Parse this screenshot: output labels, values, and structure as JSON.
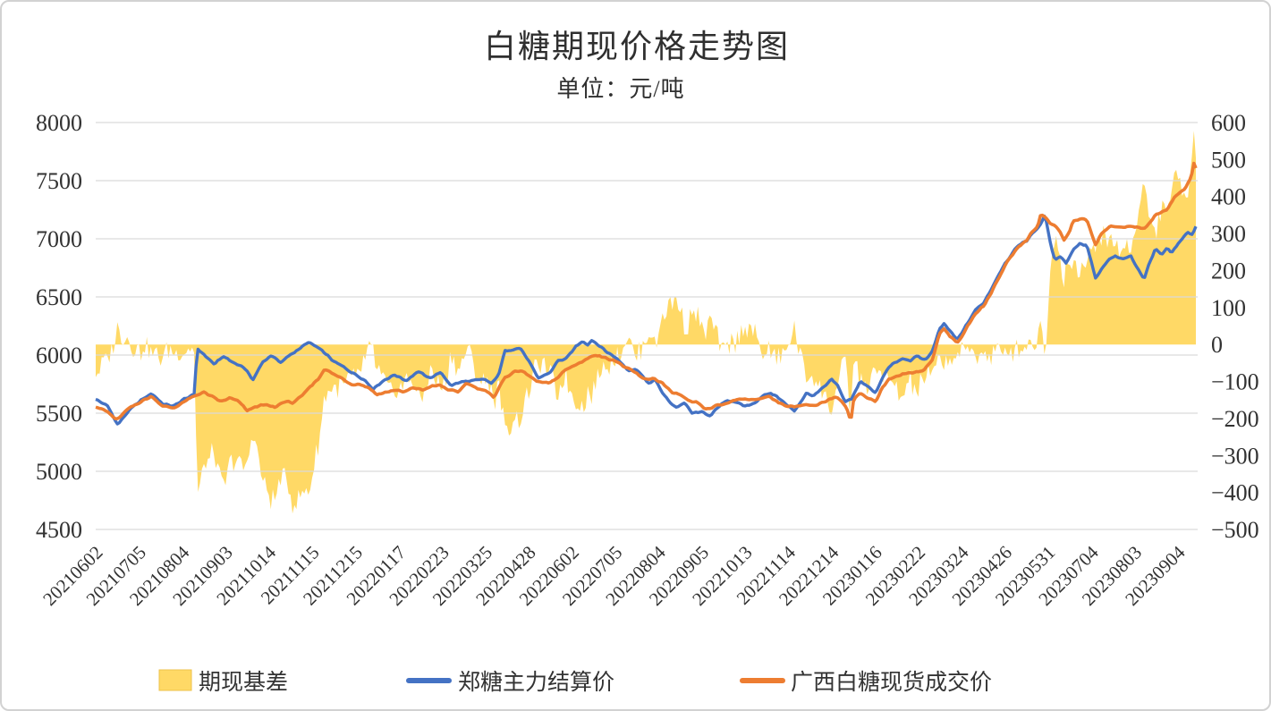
{
  "chart_data": {
    "type": "combo-area-line",
    "title": "白糖期现价格走势图",
    "subtitle": "单位：元/吨",
    "palette": {
      "basis_area": "#FFD966",
      "basis_edge": "#EDC24C",
      "futures_line": "#4472C4",
      "spot_line": "#ED7D31",
      "gridline": "#D9D9D9",
      "text": "#3d3d3d",
      "frame_border": "#d2d2d2"
    },
    "x_axis": {
      "label_rotation_deg": -45,
      "labels": [
        "20210602",
        "20210705",
        "20210804",
        "20210903",
        "20211014",
        "20211115",
        "20211215",
        "20220117",
        "20220223",
        "20220325",
        "20220428",
        "20220602",
        "20220705",
        "20220804",
        "20220905",
        "20221013",
        "20221114",
        "20221214",
        "20230116",
        "20230222",
        "20230324",
        "20230426",
        "20230531",
        "20230704",
        "20230803",
        "20230904"
      ]
    },
    "y_axis_left": {
      "min": 4500,
      "max": 8000,
      "step": 500,
      "ticks": [
        8000,
        7500,
        7000,
        6500,
        6000,
        5500,
        5000,
        4500
      ]
    },
    "y_axis_right": {
      "min": -500,
      "max": 600,
      "step": 100,
      "ticks": [
        600,
        500,
        400,
        300,
        200,
        100,
        0,
        -100,
        -200,
        -300,
        -400,
        -500
      ]
    },
    "legend": [
      {
        "label": "期现基差",
        "type": "area",
        "color": "#FFD966"
      },
      {
        "label": "郑糖主力结算价",
        "type": "line",
        "color": "#4472C4"
      },
      {
        "label": "广西白糖现货成交价",
        "type": "line",
        "color": "#ED7D31"
      }
    ],
    "keypoint_format": "[x_fraction_along_axis, price_yuan_per_ton]",
    "series": {
      "basis": {
        "name": "期现基差",
        "axis": "right",
        "color": "#FFD966",
        "derivation": "spot_minus_futures",
        "approx_range": [
          -390,
          520
        ]
      },
      "futures": {
        "name": "郑糖主力结算价",
        "axis": "left",
        "color": "#4472C4",
        "keypoints": [
          [
            0,
            5620
          ],
          [
            0.011,
            5560
          ],
          [
            0.02,
            5400
          ],
          [
            0.03,
            5520
          ],
          [
            0.041,
            5610
          ],
          [
            0.051,
            5670
          ],
          [
            0.061,
            5580
          ],
          [
            0.071,
            5560
          ],
          [
            0.08,
            5620
          ],
          [
            0.09,
            5660
          ],
          [
            0.092,
            6060
          ],
          [
            0.1,
            5990
          ],
          [
            0.108,
            5920
          ],
          [
            0.116,
            5990
          ],
          [
            0.124,
            5940
          ],
          [
            0.134,
            5900
          ],
          [
            0.143,
            5790
          ],
          [
            0.152,
            5940
          ],
          [
            0.16,
            6000
          ],
          [
            0.168,
            5930
          ],
          [
            0.176,
            6000
          ],
          [
            0.185,
            6050
          ],
          [
            0.193,
            6110
          ],
          [
            0.201,
            6070
          ],
          [
            0.209,
            6010
          ],
          [
            0.217,
            5940
          ],
          [
            0.225,
            5900
          ],
          [
            0.233,
            5850
          ],
          [
            0.244,
            5790
          ],
          [
            0.252,
            5710
          ],
          [
            0.263,
            5790
          ],
          [
            0.272,
            5830
          ],
          [
            0.282,
            5780
          ],
          [
            0.293,
            5860
          ],
          [
            0.303,
            5800
          ],
          [
            0.313,
            5850
          ],
          [
            0.323,
            5740
          ],
          [
            0.333,
            5770
          ],
          [
            0.344,
            5780
          ],
          [
            0.354,
            5790
          ],
          [
            0.36,
            5750
          ],
          [
            0.367,
            5850
          ],
          [
            0.372,
            6040
          ],
          [
            0.38,
            6050
          ],
          [
            0.386,
            6060
          ],
          [
            0.394,
            5940
          ],
          [
            0.402,
            5800
          ],
          [
            0.413,
            5850
          ],
          [
            0.42,
            5950
          ],
          [
            0.428,
            5970
          ],
          [
            0.437,
            6080
          ],
          [
            0.443,
            6120
          ],
          [
            0.447,
            6090
          ],
          [
            0.451,
            6130
          ],
          [
            0.458,
            6080
          ],
          [
            0.464,
            6030
          ],
          [
            0.471,
            5990
          ],
          [
            0.477,
            5940
          ],
          [
            0.484,
            5870
          ],
          [
            0.49,
            5880
          ],
          [
            0.496,
            5840
          ],
          [
            0.502,
            5750
          ],
          [
            0.508,
            5790
          ],
          [
            0.515,
            5680
          ],
          [
            0.521,
            5600
          ],
          [
            0.528,
            5550
          ],
          [
            0.535,
            5590
          ],
          [
            0.542,
            5500
          ],
          [
            0.55,
            5510
          ],
          [
            0.559,
            5480
          ],
          [
            0.565,
            5540
          ],
          [
            0.573,
            5610
          ],
          [
            0.581,
            5600
          ],
          [
            0.589,
            5560
          ],
          [
            0.598,
            5580
          ],
          [
            0.606,
            5650
          ],
          [
            0.614,
            5670
          ],
          [
            0.62,
            5640
          ],
          [
            0.628,
            5570
          ],
          [
            0.635,
            5520
          ],
          [
            0.641,
            5600
          ],
          [
            0.646,
            5670
          ],
          [
            0.653,
            5650
          ],
          [
            0.659,
            5700
          ],
          [
            0.664,
            5740
          ],
          [
            0.669,
            5790
          ],
          [
            0.675,
            5730
          ],
          [
            0.681,
            5600
          ],
          [
            0.687,
            5620
          ],
          [
            0.695,
            5780
          ],
          [
            0.703,
            5720
          ],
          [
            0.709,
            5670
          ],
          [
            0.715,
            5800
          ],
          [
            0.721,
            5900
          ],
          [
            0.728,
            5940
          ],
          [
            0.734,
            5970
          ],
          [
            0.74,
            5950
          ],
          [
            0.747,
            5990
          ],
          [
            0.754,
            5960
          ],
          [
            0.76,
            6020
          ],
          [
            0.767,
            6220
          ],
          [
            0.771,
            6270
          ],
          [
            0.777,
            6200
          ],
          [
            0.783,
            6130
          ],
          [
            0.791,
            6250
          ],
          [
            0.799,
            6380
          ],
          [
            0.807,
            6450
          ],
          [
            0.813,
            6550
          ],
          [
            0.82,
            6680
          ],
          [
            0.827,
            6800
          ],
          [
            0.833,
            6870
          ],
          [
            0.839,
            6950
          ],
          [
            0.846,
            6980
          ],
          [
            0.851,
            7050
          ],
          [
            0.856,
            7080
          ],
          [
            0.863,
            7200
          ],
          [
            0.868,
            6950
          ],
          [
            0.872,
            6820
          ],
          [
            0.877,
            6850
          ],
          [
            0.882,
            6790
          ],
          [
            0.888,
            6900
          ],
          [
            0.894,
            6960
          ],
          [
            0.901,
            6940
          ],
          [
            0.905,
            6800
          ],
          [
            0.909,
            6650
          ],
          [
            0.915,
            6750
          ],
          [
            0.921,
            6820
          ],
          [
            0.927,
            6850
          ],
          [
            0.933,
            6820
          ],
          [
            0.937,
            6840
          ],
          [
            0.941,
            6850
          ],
          [
            0.947,
            6750
          ],
          [
            0.953,
            6650
          ],
          [
            0.958,
            6800
          ],
          [
            0.963,
            6910
          ],
          [
            0.969,
            6870
          ],
          [
            0.974,
            6920
          ],
          [
            0.978,
            6880
          ],
          [
            0.982,
            6930
          ],
          [
            0.988,
            7010
          ],
          [
            0.993,
            7060
          ],
          [
            0.997,
            7030
          ],
          [
            1,
            7100
          ]
        ]
      },
      "spot": {
        "name": "广西白糖现货成交价",
        "axis": "left",
        "color": "#ED7D31",
        "keypoints": [
          [
            0,
            5560
          ],
          [
            0.011,
            5510
          ],
          [
            0.019,
            5440
          ],
          [
            0.03,
            5540
          ],
          [
            0.041,
            5600
          ],
          [
            0.051,
            5645
          ],
          [
            0.061,
            5560
          ],
          [
            0.071,
            5545
          ],
          [
            0.081,
            5600
          ],
          [
            0.09,
            5650
          ],
          [
            0.098,
            5680
          ],
          [
            0.106,
            5640
          ],
          [
            0.114,
            5600
          ],
          [
            0.122,
            5630
          ],
          [
            0.13,
            5600
          ],
          [
            0.138,
            5520
          ],
          [
            0.146,
            5560
          ],
          [
            0.154,
            5570
          ],
          [
            0.163,
            5550
          ],
          [
            0.171,
            5600
          ],
          [
            0.179,
            5590
          ],
          [
            0.187,
            5640
          ],
          [
            0.195,
            5730
          ],
          [
            0.203,
            5800
          ],
          [
            0.208,
            5885
          ],
          [
            0.215,
            5840
          ],
          [
            0.224,
            5800
          ],
          [
            0.232,
            5750
          ],
          [
            0.24,
            5750
          ],
          [
            0.248,
            5720
          ],
          [
            0.256,
            5660
          ],
          [
            0.264,
            5680
          ],
          [
            0.272,
            5700
          ],
          [
            0.28,
            5680
          ],
          [
            0.289,
            5720
          ],
          [
            0.297,
            5700
          ],
          [
            0.305,
            5730
          ],
          [
            0.313,
            5740
          ],
          [
            0.321,
            5700
          ],
          [
            0.329,
            5680
          ],
          [
            0.337,
            5760
          ],
          [
            0.346,
            5720
          ],
          [
            0.354,
            5690
          ],
          [
            0.362,
            5640
          ],
          [
            0.372,
            5810
          ],
          [
            0.38,
            5850
          ],
          [
            0.386,
            5870
          ],
          [
            0.394,
            5820
          ],
          [
            0.402,
            5770
          ],
          [
            0.411,
            5756
          ],
          [
            0.417,
            5780
          ],
          [
            0.425,
            5860
          ],
          [
            0.435,
            5910
          ],
          [
            0.443,
            5950
          ],
          [
            0.451,
            5990
          ],
          [
            0.458,
            6000
          ],
          [
            0.464,
            5970
          ],
          [
            0.471,
            5960
          ],
          [
            0.477,
            5920
          ],
          [
            0.484,
            5880
          ],
          [
            0.492,
            5840
          ],
          [
            0.498,
            5790
          ],
          [
            0.507,
            5800
          ],
          [
            0.515,
            5760
          ],
          [
            0.523,
            5680
          ],
          [
            0.531,
            5660
          ],
          [
            0.539,
            5600
          ],
          [
            0.547,
            5590
          ],
          [
            0.555,
            5530
          ],
          [
            0.563,
            5560
          ],
          [
            0.572,
            5580
          ],
          [
            0.58,
            5610
          ],
          [
            0.588,
            5630
          ],
          [
            0.596,
            5610
          ],
          [
            0.604,
            5630
          ],
          [
            0.612,
            5640
          ],
          [
            0.62,
            5600
          ],
          [
            0.628,
            5560
          ],
          [
            0.637,
            5560
          ],
          [
            0.645,
            5570
          ],
          [
            0.654,
            5560
          ],
          [
            0.663,
            5600
          ],
          [
            0.671,
            5640
          ],
          [
            0.677,
            5620
          ],
          [
            0.682,
            5560
          ],
          [
            0.685,
            5480
          ],
          [
            0.686,
            5400
          ],
          [
            0.689,
            5620
          ],
          [
            0.695,
            5670
          ],
          [
            0.703,
            5630
          ],
          [
            0.709,
            5600
          ],
          [
            0.715,
            5720
          ],
          [
            0.721,
            5790
          ],
          [
            0.728,
            5815
          ],
          [
            0.736,
            5840
          ],
          [
            0.744,
            5855
          ],
          [
            0.752,
            5865
          ],
          [
            0.76,
            5950
          ],
          [
            0.767,
            6180
          ],
          [
            0.771,
            6230
          ],
          [
            0.777,
            6160
          ],
          [
            0.783,
            6100
          ],
          [
            0.791,
            6220
          ],
          [
            0.799,
            6350
          ],
          [
            0.807,
            6420
          ],
          [
            0.813,
            6520
          ],
          [
            0.82,
            6650
          ],
          [
            0.827,
            6780
          ],
          [
            0.833,
            6860
          ],
          [
            0.839,
            6940
          ],
          [
            0.846,
            6980
          ],
          [
            0.851,
            7060
          ],
          [
            0.856,
            7100
          ],
          [
            0.859,
            7210
          ],
          [
            0.863,
            7190
          ],
          [
            0.868,
            7120
          ],
          [
            0.872,
            7115
          ],
          [
            0.877,
            7060
          ],
          [
            0.88,
            6980
          ],
          [
            0.885,
            7060
          ],
          [
            0.888,
            7150
          ],
          [
            0.894,
            7170
          ],
          [
            0.901,
            7160
          ],
          [
            0.905,
            7050
          ],
          [
            0.909,
            6940
          ],
          [
            0.915,
            7060
          ],
          [
            0.921,
            7100
          ],
          [
            0.927,
            7110
          ],
          [
            0.933,
            7100
          ],
          [
            0.939,
            7110
          ],
          [
            0.945,
            7100
          ],
          [
            0.953,
            7090
          ],
          [
            0.958,
            7140
          ],
          [
            0.963,
            7200
          ],
          [
            0.969,
            7230
          ],
          [
            0.974,
            7250
          ],
          [
            0.98,
            7350
          ],
          [
            0.985,
            7400
          ],
          [
            0.99,
            7430
          ],
          [
            0.996,
            7540
          ],
          [
            0.998,
            7650
          ],
          [
            1,
            7600
          ]
        ]
      }
    }
  }
}
